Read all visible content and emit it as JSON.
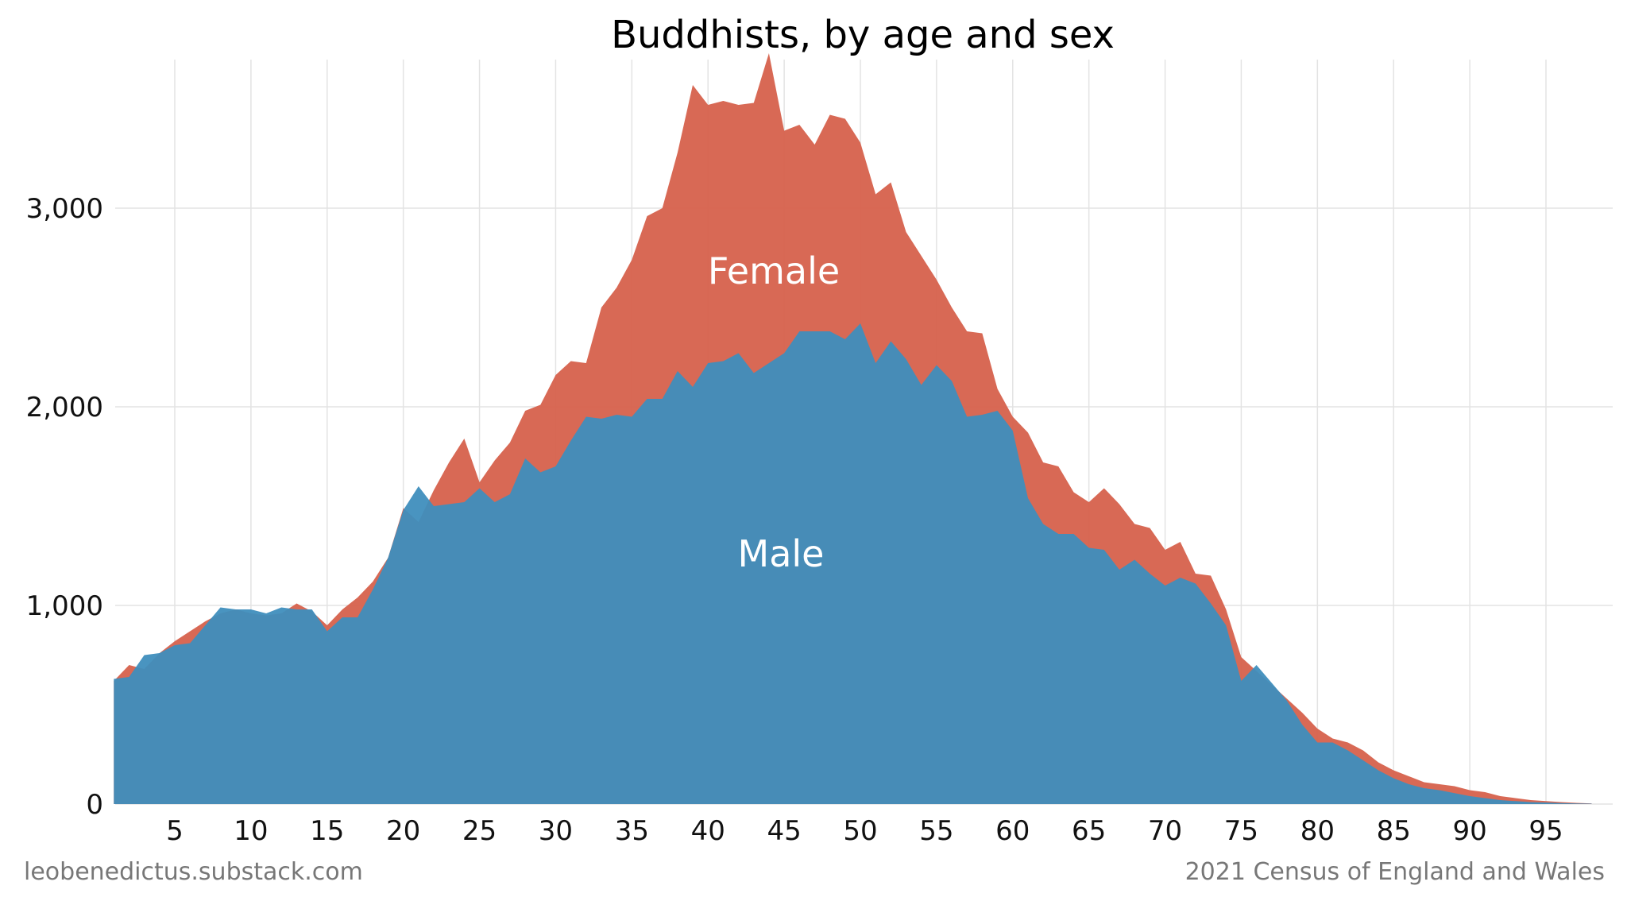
{
  "chart_data": {
    "type": "area",
    "title": "Buddhists, by age and sex",
    "xlabel": "",
    "ylabel": "",
    "x_ticks": [
      5,
      10,
      15,
      20,
      25,
      30,
      35,
      40,
      45,
      50,
      55,
      60,
      65,
      70,
      75,
      80,
      85,
      90,
      95
    ],
    "y_ticks": [
      0,
      1000,
      2000,
      3000
    ],
    "y_tick_labels": [
      "0",
      "1,000",
      "2,000",
      "3,000"
    ],
    "xlim": [
      1,
      99
    ],
    "ylim": [
      0,
      3800
    ],
    "grid": true,
    "legend": "none (series labelled directly on areas)",
    "x": [
      1,
      2,
      3,
      4,
      5,
      6,
      7,
      8,
      9,
      10,
      11,
      12,
      13,
      14,
      15,
      16,
      17,
      18,
      19,
      20,
      21,
      22,
      23,
      24,
      25,
      26,
      27,
      28,
      29,
      30,
      31,
      32,
      33,
      34,
      35,
      36,
      37,
      38,
      39,
      40,
      41,
      42,
      43,
      44,
      45,
      46,
      47,
      48,
      49,
      50,
      51,
      52,
      53,
      54,
      55,
      56,
      57,
      58,
      59,
      60,
      61,
      62,
      63,
      64,
      65,
      66,
      67,
      68,
      69,
      70,
      71,
      72,
      73,
      74,
      75,
      76,
      77,
      78,
      79,
      80,
      81,
      82,
      83,
      84,
      85,
      86,
      87,
      88,
      89,
      90,
      91,
      92,
      93,
      94,
      95,
      96,
      97,
      98
    ],
    "series": [
      {
        "name": "Female",
        "color": "#D6614C",
        "values": [
          620,
          700,
          680,
          760,
          820,
          870,
          920,
          960,
          980,
          960,
          950,
          960,
          1010,
          970,
          900,
          980,
          1040,
          1120,
          1240,
          1490,
          1420,
          1580,
          1720,
          1840,
          1620,
          1730,
          1820,
          1980,
          2010,
          2160,
          2230,
          2220,
          2500,
          2600,
          2740,
          2960,
          3000,
          3280,
          3620,
          3520,
          3540,
          3520,
          3530,
          3780,
          3390,
          3420,
          3320,
          3470,
          3450,
          3330,
          3070,
          3130,
          2880,
          2760,
          2640,
          2500,
          2380,
          2370,
          2090,
          1950,
          1870,
          1720,
          1700,
          1570,
          1520,
          1590,
          1510,
          1410,
          1390,
          1280,
          1320,
          1160,
          1150,
          980,
          740,
          670,
          600,
          530,
          460,
          380,
          330,
          310,
          270,
          210,
          170,
          140,
          110,
          100,
          90,
          70,
          60,
          40,
          30,
          20,
          15,
          10,
          6,
          3
        ]
      },
      {
        "name": "Male",
        "color": "#3F8EBD",
        "values": [
          630,
          640,
          750,
          760,
          800,
          810,
          900,
          990,
          980,
          980,
          960,
          990,
          980,
          980,
          870,
          940,
          940,
          1080,
          1240,
          1480,
          1600,
          1500,
          1510,
          1520,
          1590,
          1520,
          1560,
          1740,
          1670,
          1700,
          1830,
          1950,
          1940,
          1960,
          1950,
          2040,
          2040,
          2180,
          2100,
          2220,
          2230,
          2270,
          2170,
          2220,
          2270,
          2380,
          2380,
          2380,
          2340,
          2420,
          2220,
          2330,
          2240,
          2110,
          2210,
          2130,
          1950,
          1960,
          1980,
          1880,
          1540,
          1410,
          1360,
          1360,
          1290,
          1280,
          1180,
          1230,
          1160,
          1100,
          1140,
          1110,
          1010,
          900,
          620,
          700,
          610,
          520,
          400,
          310,
          310,
          270,
          220,
          170,
          130,
          100,
          80,
          70,
          55,
          40,
          30,
          20,
          15,
          10,
          8,
          5,
          3,
          2
        ]
      }
    ],
    "annotations": [
      "Female",
      "Male"
    ]
  },
  "footer": {
    "source_left": "leobenedictus.substack.com",
    "source_right": "2021 Census of England and Wales"
  }
}
